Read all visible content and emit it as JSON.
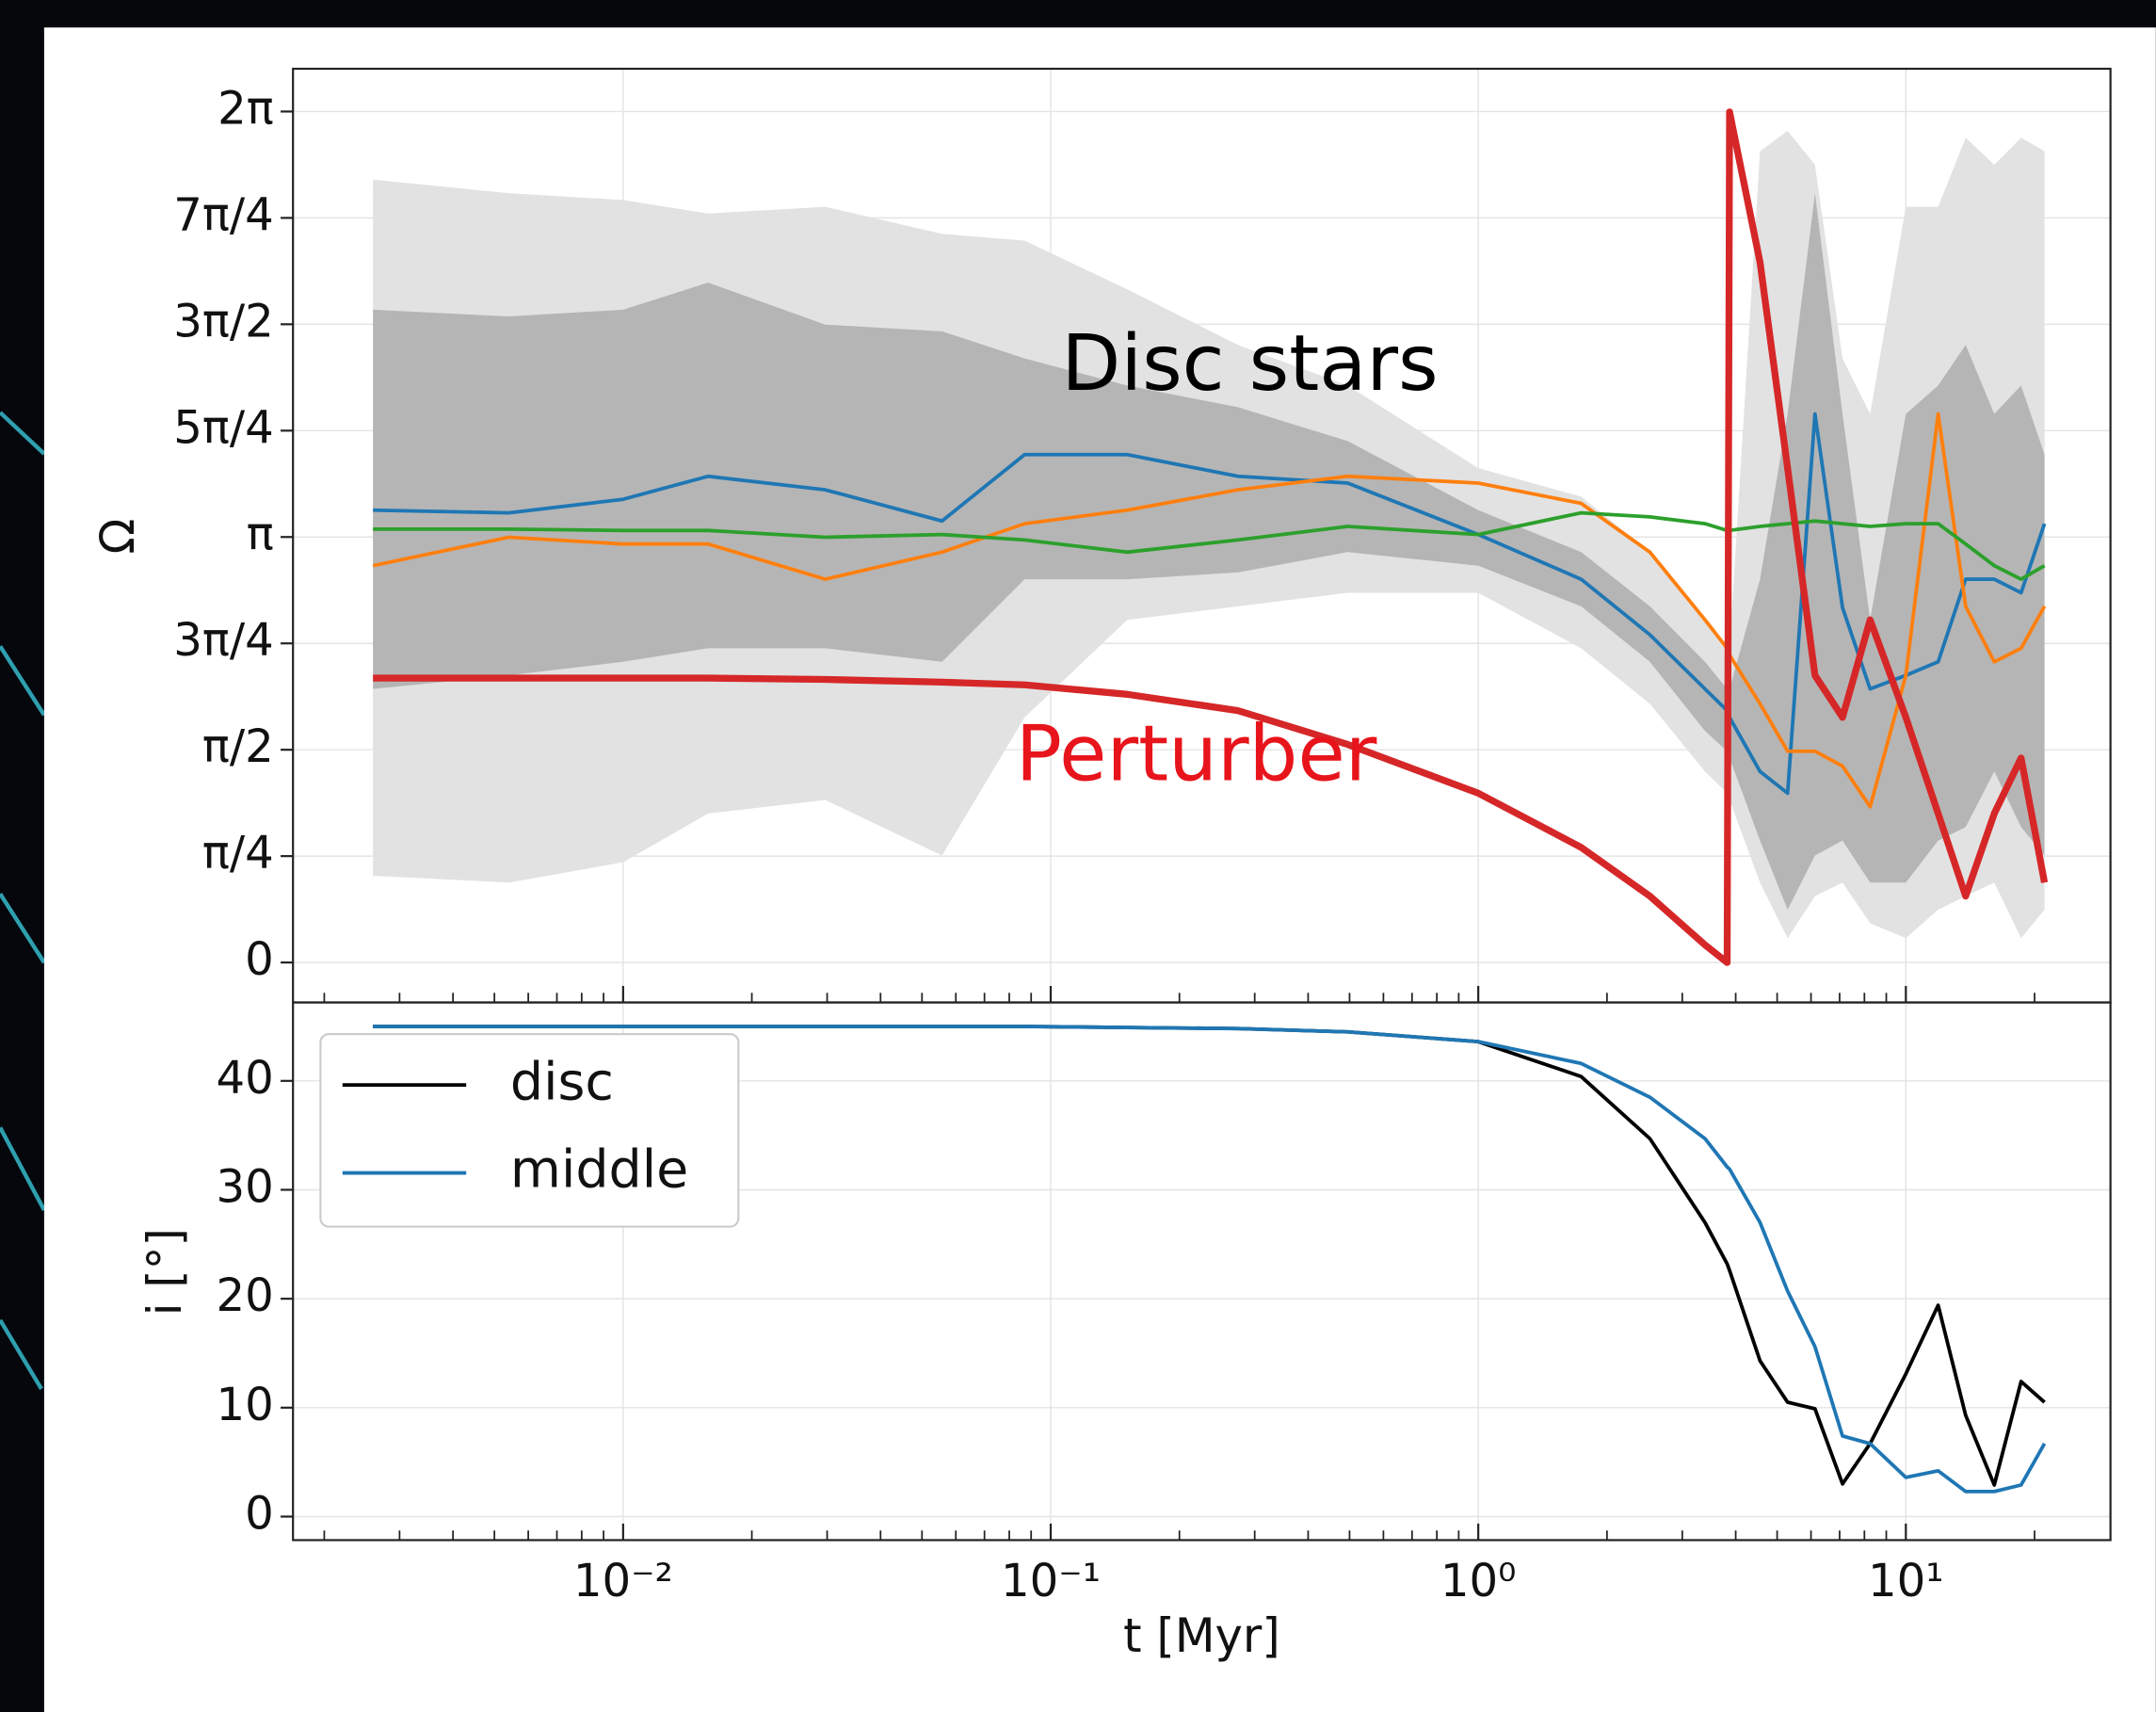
{
  "chart_data": [
    {
      "type": "line",
      "xscale": "log",
      "grid": true,
      "ylabel": "Ω",
      "xlim": [
        0.00169,
        30.1
      ],
      "ylim": [
        -0.295,
        6.599
      ],
      "yticks": [
        0,
        {
          "value": 0.785398,
          "label": "π/4"
        },
        {
          "value": 1.570796,
          "label": "π/2"
        },
        {
          "value": 2.356194,
          "label": "3π/4"
        },
        {
          "value": 3.141593,
          "label": "π"
        },
        {
          "value": 3.926991,
          "label": "5π/4"
        },
        {
          "value": 4.712389,
          "label": "3π/2"
        },
        {
          "value": 5.497787,
          "label": "7π/4"
        },
        {
          "value": 6.283185,
          "label": "2π"
        }
      ],
      "x": [
        0.0026,
        0.0054,
        0.01,
        0.0158,
        0.0297,
        0.0557,
        0.0869,
        0.151,
        0.274,
        0.495,
        1,
        1.74,
        2.52,
        3.39,
        3.82,
        3.87,
        4.56,
        5.29,
        6.13,
        7.11,
        8.25,
        10,
        11.9,
        13.8,
        16.1,
        18.6,
        21.1
      ],
      "bands": [
        {
          "color": "#e2e2e2",
          "upper": [
            5.78,
            5.68,
            5.63,
            5.53,
            5.58,
            5.38,
            5.33,
            4.97,
            4.56,
            4.26,
            3.65,
            3.44,
            3.03,
            2.53,
            2.32,
            2.32,
            5.99,
            6.14,
            5.89,
            4.46,
            4.05,
            5.58,
            5.58,
            6.09,
            5.89,
            6.09,
            5.99
          ],
          "lower": [
            0.64,
            0.59,
            0.74,
            1.1,
            1.2,
            0.79,
            1.81,
            2.53,
            2.63,
            2.73,
            2.73,
            2.32,
            1.91,
            1.41,
            1.25,
            1.2,
            0.59,
            0.18,
            0.49,
            0.59,
            0.29,
            0.18,
            0.39,
            0.49,
            0.59,
            0.18,
            0.39
          ]
        },
        {
          "color": "#b5b5b5",
          "upper": [
            4.82,
            4.77,
            4.82,
            5.02,
            4.71,
            4.66,
            4.46,
            4.26,
            4.1,
            3.85,
            3.34,
            3.03,
            2.63,
            2.22,
            2.02,
            2.02,
            2.83,
            4.05,
            5.68,
            4.05,
            2.53,
            4.05,
            4.26,
            4.56,
            4.05,
            4.26,
            3.75
          ],
          "lower": [
            2.02,
            2.12,
            2.22,
            2.32,
            2.32,
            2.22,
            2.83,
            2.83,
            2.88,
            3.03,
            2.93,
            2.63,
            2.22,
            1.71,
            1.56,
            1.51,
            0.9,
            0.39,
            0.79,
            0.9,
            0.59,
            0.59,
            0.9,
            1.0,
            1.41,
            1.0,
            0.79
          ]
        }
      ],
      "series": [
        {
          "color": "#1f77b4",
          "values": [
            3.34,
            3.32,
            3.42,
            3.59,
            3.49,
            3.26,
            3.75,
            3.75,
            3.59,
            3.54,
            3.16,
            2.83,
            2.42,
            2.02,
            1.86,
            1.81,
            1.41,
            1.25,
            4.05,
            2.62,
            2.02,
            2.12,
            2.22,
            2.83,
            2.83,
            2.73,
            3.24
          ]
        },
        {
          "color": "#ff7f0e",
          "values": [
            2.93,
            3.14,
            3.09,
            3.09,
            2.83,
            3.03,
            3.24,
            3.34,
            3.49,
            3.59,
            3.54,
            3.39,
            3.03,
            2.53,
            2.32,
            2.27,
            1.91,
            1.56,
            1.56,
            1.45,
            1.15,
            2.12,
            4.05,
            2.63,
            2.22,
            2.32,
            2.63
          ]
        },
        {
          "color": "#2ca02c",
          "values": [
            3.2,
            3.2,
            3.19,
            3.19,
            3.14,
            3.16,
            3.12,
            3.03,
            3.12,
            3.22,
            3.16,
            3.32,
            3.29,
            3.24,
            3.19,
            3.19,
            3.22,
            3.24,
            3.26,
            3.24,
            3.22,
            3.24,
            3.24,
            3.09,
            2.93,
            2.83,
            2.93
          ]
        },
        {
          "color": "#d62728",
          "values": [
            2.1,
            2.1,
            2.1,
            2.1,
            2.09,
            2.07,
            2.05,
            1.98,
            1.86,
            1.61,
            1.25,
            0.85,
            0.49,
            0.13,
            0,
            6.28,
            5.17,
            3.65,
            2.12,
            1.81,
            2.53,
            1.81,
            1.1,
            0.49,
            1.1,
            1.51,
            0.59
          ]
        }
      ],
      "annotations": [
        {
          "text": "Disc stars",
          "color": "#000000"
        },
        {
          "text": "Perturber",
          "color": "#e8141b"
        }
      ]
    },
    {
      "type": "line",
      "xscale": "log",
      "grid": true,
      "xlabel": "t [Myr]",
      "ylabel": "i [°]",
      "legend": "upper left",
      "xlim": [
        0.00169,
        30.1
      ],
      "ylim": [
        -2.16,
        47.2
      ],
      "xticks": [
        {
          "value": 0.01,
          "label": "10⁻²"
        },
        {
          "value": 0.1,
          "label": "10⁻¹"
        },
        {
          "value": 1,
          "label": "10⁰"
        },
        {
          "value": 10,
          "label": "10¹"
        }
      ],
      "xminorticks": [
        0.002,
        0.003,
        0.004,
        0.005,
        0.006,
        0.007,
        0.008,
        0.009,
        0.02,
        0.03,
        0.04,
        0.05,
        0.06,
        0.07,
        0.08,
        0.09,
        0.2,
        0.3,
        0.4,
        0.5,
        0.6,
        0.7,
        0.8,
        0.9,
        2,
        3,
        4,
        5,
        6,
        7,
        8,
        9,
        20
      ],
      "yticks": [
        0,
        10,
        20,
        30,
        40
      ],
      "x": [
        0.0026,
        0.0054,
        0.01,
        0.0158,
        0.0297,
        0.0557,
        0.0869,
        0.151,
        0.274,
        0.495,
        1,
        1.74,
        2.52,
        3.39,
        3.82,
        3.87,
        4.56,
        5.29,
        6.13,
        7.11,
        8.25,
        10,
        11.9,
        13.8,
        16.1,
        18.6,
        21.1
      ],
      "series": [
        {
          "name": "disc",
          "color": "#000000",
          "values": [
            45,
            45,
            45,
            45,
            45,
            45,
            45,
            44.9,
            44.8,
            44.5,
            43.6,
            40.4,
            34.7,
            27,
            23.2,
            22.6,
            14.3,
            10.5,
            9.9,
            3.0,
            6.7,
            13.1,
            19.4,
            9.3,
            2.9,
            12.4,
            10.5
          ]
        },
        {
          "name": "middle",
          "color": "#1f77b4",
          "values": [
            45,
            45,
            45,
            45,
            45,
            45,
            45,
            44.9,
            44.8,
            44.5,
            43.6,
            41.6,
            38.5,
            34.7,
            32.1,
            31.9,
            27,
            20.7,
            15.6,
            7.4,
            6.7,
            3.6,
            4.2,
            2.3,
            2.3,
            2.9,
            6.7
          ]
        }
      ]
    }
  ]
}
